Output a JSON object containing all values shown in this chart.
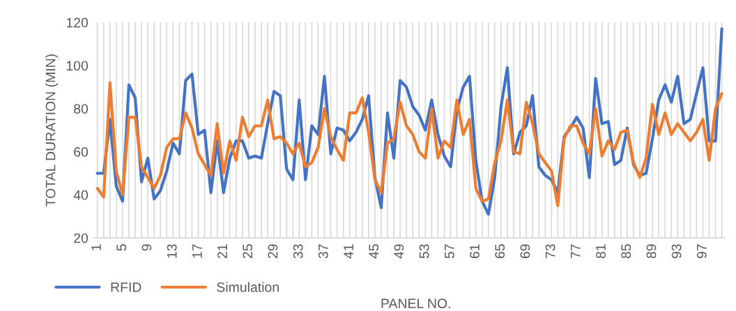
{
  "chart_data": {
    "type": "line",
    "xlabel": "PANEL NO.",
    "ylabel": "TOTAL DURATION (MIN)",
    "categories": [
      "1",
      null,
      null,
      null,
      "5",
      null,
      null,
      null,
      "9",
      null,
      null,
      null,
      "13",
      null,
      null,
      null,
      "17",
      null,
      null,
      null,
      "21",
      null,
      null,
      null,
      "25",
      null,
      null,
      null,
      "29",
      null,
      null,
      null,
      "33",
      null,
      null,
      null,
      "37",
      null,
      null,
      null,
      "41",
      null,
      null,
      null,
      "45",
      null,
      null,
      null,
      "49",
      null,
      null,
      null,
      "53",
      null,
      null,
      null,
      "57",
      null,
      null,
      null,
      "61",
      null,
      null,
      null,
      "65",
      null,
      null,
      null,
      "69",
      null,
      null,
      null,
      "73",
      null,
      null,
      null,
      "77",
      null,
      null,
      null,
      "81",
      null,
      null,
      null,
      "85",
      null,
      null,
      null,
      "89",
      null,
      null,
      null,
      "93",
      null,
      null,
      null,
      "97",
      null,
      null,
      null
    ],
    "series": [
      {
        "name": "RFID",
        "color": "#4472c4",
        "values": [
          50,
          50,
          75,
          44,
          37,
          91,
          85,
          46,
          57,
          38,
          42,
          51,
          64,
          59,
          93,
          96,
          68,
          70,
          41,
          65,
          41,
          57,
          65,
          65,
          57,
          58,
          57,
          73,
          88,
          86,
          52,
          47,
          84,
          47,
          72,
          68,
          95,
          59,
          71,
          70,
          65,
          69,
          75,
          86,
          48,
          34,
          78,
          57,
          93,
          90,
          81,
          77,
          70,
          84,
          68,
          58,
          53,
          79,
          90,
          95,
          56,
          37,
          31,
          48,
          81,
          99,
          59,
          69,
          72,
          86,
          53,
          49,
          47,
          41,
          67,
          71,
          76,
          71,
          48,
          94,
          73,
          74,
          54,
          56,
          71,
          54,
          49,
          50,
          66,
          84,
          91,
          83,
          95,
          73,
          75,
          87,
          99,
          65,
          65,
          117
        ]
      },
      {
        "name": "Simulation",
        "color": "#ed7d31",
        "values": [
          43,
          39,
          92,
          51,
          40,
          76,
          76,
          53,
          48,
          43,
          49,
          62,
          66,
          66,
          78,
          71,
          59,
          54,
          49,
          73,
          50,
          65,
          56,
          76,
          67,
          72,
          72,
          84,
          66,
          67,
          64,
          59,
          64,
          53,
          55,
          62,
          80,
          67,
          61,
          56,
          78,
          78,
          85,
          69,
          47,
          41,
          64,
          66,
          83,
          72,
          68,
          60,
          57,
          80,
          57,
          65,
          62,
          84,
          68,
          75,
          43,
          37,
          38,
          55,
          65,
          84,
          60,
          59,
          83,
          73,
          59,
          55,
          51,
          35,
          66,
          72,
          72,
          64,
          59,
          80,
          58,
          65,
          61,
          69,
          70,
          55,
          48,
          57,
          82,
          68,
          78,
          68,
          73,
          69,
          65,
          69,
          75,
          56,
          80,
          87
        ]
      }
    ],
    "ylim": [
      20,
      120
    ],
    "yticks": [
      20,
      40,
      60,
      80,
      100,
      120
    ],
    "grid": "x",
    "legend": "bottom left",
    "marker": "none",
    "line_style": "solid"
  }
}
